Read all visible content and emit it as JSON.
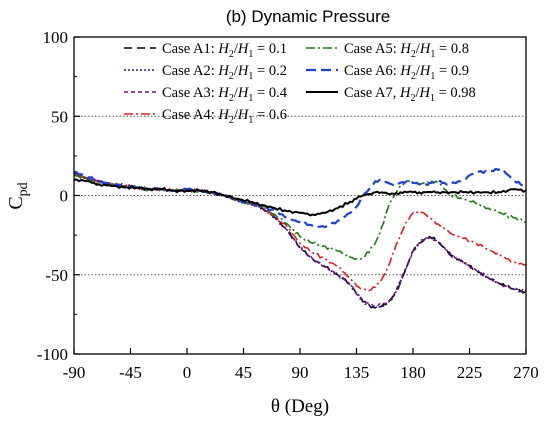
{
  "chart_data": {
    "type": "line",
    "title": "(b) Dynamic Pressure",
    "xlabel": "θ (Deg)",
    "ylabel": {
      "main": "C",
      "sub": "pd"
    },
    "xlim": [
      -90,
      270
    ],
    "ylim": [
      -100,
      100
    ],
    "xticks": [
      -90,
      -45,
      0,
      45,
      90,
      135,
      180,
      225,
      270
    ],
    "yticks": [
      -100,
      -50,
      0,
      50,
      100
    ],
    "reference_lines": [
      50,
      0,
      -50
    ],
    "legend_position": "top (inside plot, two columns)",
    "series": [
      {
        "name": "Case A1: H2/H1 = 0.1",
        "legend": {
          "prefix": "Case A1: ",
          "val": "0.1"
        },
        "color": "#000000",
        "dash": "8,5",
        "width": 1.6,
        "x": [
          -90,
          -80,
          -70,
          -60,
          -50,
          -40,
          -30,
          -20,
          -10,
          0,
          10,
          20,
          30,
          40,
          50,
          60,
          70,
          80,
          90,
          100,
          110,
          120,
          130,
          135,
          140,
          145,
          150,
          155,
          160,
          165,
          170,
          175,
          180,
          185,
          190,
          195,
          200,
          205,
          210,
          220,
          230,
          240,
          250,
          260,
          270
        ],
        "y": [
          14,
          11,
          9,
          7,
          6,
          5,
          4,
          4,
          3,
          3,
          3,
          2,
          0,
          -3,
          -5,
          -8,
          -14,
          -22,
          -33,
          -40,
          -45,
          -50,
          -56,
          -62,
          -67,
          -69,
          -71,
          -70,
          -68,
          -63,
          -55,
          -45,
          -35,
          -30,
          -27,
          -27,
          -29,
          -33,
          -38,
          -42,
          -47,
          -52,
          -56,
          -59,
          -61
        ],
        "noise": 1.2
      },
      {
        "name": "Case A2: H2/H1 = 0.2",
        "legend": {
          "prefix": "Case A2: ",
          "val": "0.2"
        },
        "color": "#1a1aa0",
        "dash": "2,2",
        "width": 1.4,
        "x": [
          -90,
          -80,
          -70,
          -60,
          -50,
          -40,
          -30,
          -20,
          -10,
          0,
          10,
          20,
          30,
          40,
          50,
          60,
          70,
          80,
          90,
          100,
          110,
          120,
          130,
          135,
          140,
          145,
          150,
          155,
          160,
          165,
          170,
          175,
          180,
          185,
          190,
          195,
          200,
          205,
          210,
          220,
          230,
          240,
          250,
          260,
          270
        ],
        "y": [
          14,
          11,
          9,
          7,
          6,
          5,
          4,
          4,
          3,
          3,
          3,
          2,
          0,
          -3,
          -5,
          -8,
          -14,
          -22,
          -33,
          -40,
          -45,
          -50,
          -56,
          -62,
          -67,
          -69,
          -71,
          -70,
          -68,
          -63,
          -55,
          -45,
          -35,
          -30,
          -27,
          -27,
          -29,
          -33,
          -38,
          -42,
          -47,
          -52,
          -56,
          -59,
          -62
        ],
        "noise": 1.2
      },
      {
        "name": "Case A3: H2/H1 = 0.4",
        "legend": {
          "prefix": "Case A3: ",
          "val": "0.4"
        },
        "color": "#7a1060",
        "dash": "4,3",
        "width": 1.4,
        "x": [
          -90,
          -80,
          -70,
          -60,
          -50,
          -40,
          -30,
          -20,
          -10,
          0,
          10,
          20,
          30,
          40,
          50,
          60,
          70,
          80,
          90,
          100,
          110,
          120,
          130,
          135,
          140,
          145,
          150,
          155,
          160,
          165,
          170,
          175,
          180,
          185,
          190,
          195,
          200,
          205,
          210,
          220,
          230,
          240,
          250,
          260,
          270
        ],
        "y": [
          14,
          11,
          9,
          7,
          6,
          5,
          4,
          4,
          3,
          3,
          3,
          2,
          0,
          -3,
          -5,
          -8,
          -14,
          -22,
          -33,
          -40,
          -45,
          -50,
          -56,
          -62,
          -66,
          -68,
          -70,
          -69,
          -67,
          -62,
          -54,
          -45,
          -35,
          -30,
          -27,
          -27,
          -29,
          -33,
          -37,
          -42,
          -47,
          -52,
          -56,
          -59,
          -60
        ],
        "noise": 1.2
      },
      {
        "name": "Case A4: H2/H1 = 0.6",
        "legend": {
          "prefix": "Case A4: ",
          "val": "0.6"
        },
        "color": "#e02020",
        "dash": "9,3,2,3",
        "width": 1.6,
        "x": [
          -90,
          -80,
          -70,
          -60,
          -50,
          -40,
          -30,
          -20,
          -10,
          0,
          10,
          20,
          30,
          40,
          50,
          60,
          70,
          80,
          90,
          100,
          110,
          120,
          130,
          135,
          140,
          145,
          150,
          155,
          160,
          165,
          170,
          175,
          180,
          185,
          190,
          195,
          200,
          205,
          210,
          220,
          230,
          240,
          250,
          260,
          270
        ],
        "y": [
          13,
          11,
          9,
          7,
          6,
          5,
          4,
          4,
          3,
          3,
          3,
          2,
          0,
          -3,
          -5,
          -7,
          -13,
          -20,
          -30,
          -36,
          -40,
          -45,
          -52,
          -57,
          -59,
          -60,
          -58,
          -53,
          -45,
          -35,
          -25,
          -16,
          -11,
          -10,
          -12,
          -15,
          -18,
          -21,
          -24,
          -27,
          -30,
          -34,
          -38,
          -42,
          -44
        ],
        "noise": 1.0
      },
      {
        "name": "Case A5: H2/H1 = 0.8",
        "legend": {
          "prefix": "Case A5: ",
          "val": "0.8"
        },
        "color": "#1e7a14",
        "dash": "9,3,2,3",
        "width": 1.6,
        "x": [
          -90,
          -80,
          -70,
          -60,
          -50,
          -40,
          -30,
          -20,
          -10,
          0,
          10,
          20,
          30,
          40,
          50,
          60,
          70,
          80,
          90,
          100,
          110,
          120,
          130,
          135,
          140,
          145,
          150,
          155,
          160,
          165,
          170,
          175,
          180,
          185,
          190,
          195,
          200,
          205,
          210,
          220,
          230,
          240,
          250,
          260,
          270
        ],
        "y": [
          13,
          10,
          8,
          7,
          6,
          5,
          4,
          4,
          3,
          3,
          3,
          2,
          0,
          -3,
          -5,
          -7,
          -12,
          -18,
          -26,
          -30,
          -32,
          -35,
          -39,
          -40,
          -39,
          -36,
          -30,
          -20,
          -8,
          0,
          6,
          9,
          8,
          7,
          8,
          9,
          8,
          4,
          0,
          -2,
          -5,
          -8,
          -11,
          -14,
          -17
        ],
        "noise": 1.3
      },
      {
        "name": "Case A6: H2/H1 = 0.9",
        "legend": {
          "prefix": "Case A6: ",
          "val": "0.9"
        },
        "color": "#1f3fd6",
        "dash": "10,5",
        "width": 2.2,
        "x": [
          -90,
          -80,
          -70,
          -60,
          -50,
          -40,
          -30,
          -20,
          -10,
          0,
          10,
          20,
          30,
          40,
          50,
          60,
          70,
          80,
          90,
          100,
          110,
          120,
          130,
          135,
          140,
          145,
          150,
          155,
          160,
          165,
          170,
          175,
          180,
          185,
          190,
          195,
          200,
          205,
          210,
          220,
          230,
          240,
          250,
          260,
          270
        ],
        "y": [
          15,
          12,
          9,
          7,
          6,
          5,
          4,
          4,
          3,
          4,
          3,
          2,
          0,
          -3,
          -5,
          -7,
          -10,
          -14,
          -17,
          -19,
          -20,
          -16,
          -11,
          -7,
          -1,
          4,
          9,
          10,
          8,
          6,
          8,
          9,
          8,
          7,
          7,
          8,
          9,
          8,
          7,
          10,
          15,
          15,
          17,
          10,
          5
        ],
        "noise": 0.8
      },
      {
        "name": "Case A7: H2/H1 = 0.98",
        "legend": {
          "prefix": "Case A7, ",
          "val": "0.98"
        },
        "color": "#000000",
        "dash": "",
        "width": 2.0,
        "x": [
          -90,
          -80,
          -70,
          -60,
          -50,
          -40,
          -30,
          -20,
          -10,
          0,
          10,
          20,
          30,
          40,
          50,
          60,
          70,
          80,
          90,
          100,
          110,
          120,
          130,
          135,
          140,
          145,
          150,
          155,
          160,
          165,
          170,
          175,
          180,
          185,
          190,
          195,
          200,
          205,
          210,
          220,
          230,
          240,
          250,
          260,
          270
        ],
        "y": [
          10,
          9,
          7,
          6,
          5,
          5,
          4,
          4,
          3,
          3,
          3,
          2,
          0,
          -2,
          -4,
          -6,
          -8,
          -10,
          -11,
          -12,
          -11,
          -8,
          -4,
          -2,
          0,
          1,
          2,
          2,
          1,
          1,
          2,
          2,
          2,
          2,
          2,
          2,
          2,
          2,
          2,
          2,
          2,
          2,
          2,
          4,
          3
        ],
        "noise": 0.9
      }
    ]
  }
}
